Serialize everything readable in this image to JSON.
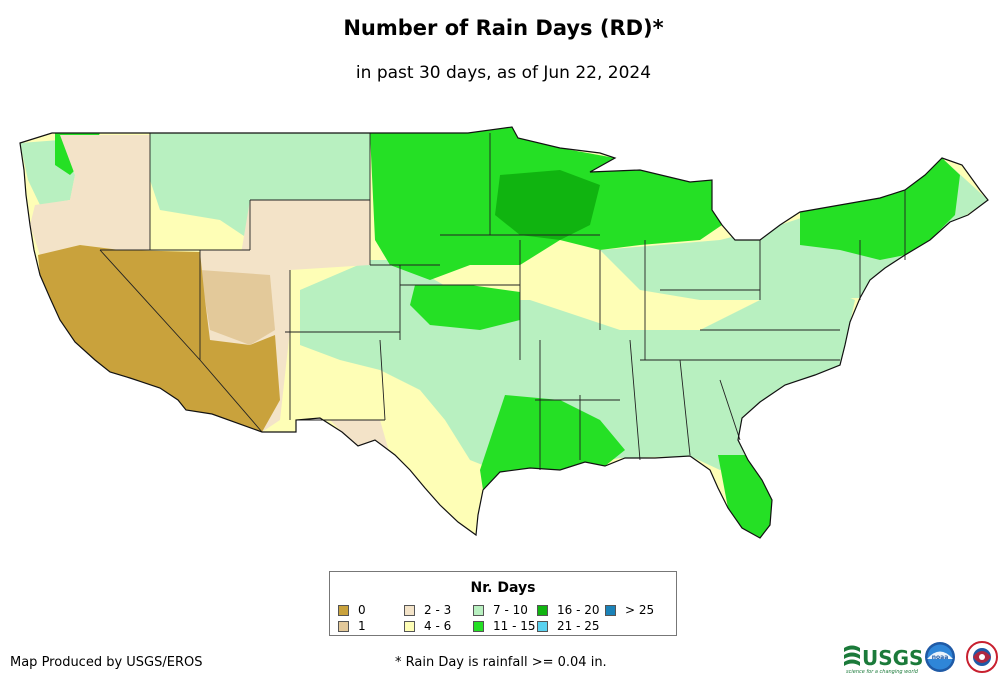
{
  "title": "Number of Rain Days (RD)*",
  "subtitle": "in past 30 days, as of Jun 22, 2024",
  "legend": {
    "title": "Nr. Days",
    "items": [
      {
        "label": "0",
        "color": "#c9a23c"
      },
      {
        "label": "1",
        "color": "#e3c99a"
      },
      {
        "label": "2 - 3",
        "color": "#f3e3c8"
      },
      {
        "label": "4 - 6",
        "color": "#fefeb6"
      },
      {
        "label": "7 - 10",
        "color": "#b8f0c0"
      },
      {
        "label": "11 - 15",
        "color": "#25e025"
      },
      {
        "label": "16 - 20",
        "color": "#10b410"
      },
      {
        "label": "21 - 25",
        "color": "#5ad2f0"
      },
      {
        "label": "> 25",
        "color": "#1a82b8"
      }
    ]
  },
  "credit": "Map Produced by USGS/EROS",
  "footnote": "* Rain Day is rainfall >= 0.04 in.",
  "logos": {
    "usgs": "USGS",
    "usgs_tagline": "science for a changing world",
    "noaa": "noaa"
  }
}
